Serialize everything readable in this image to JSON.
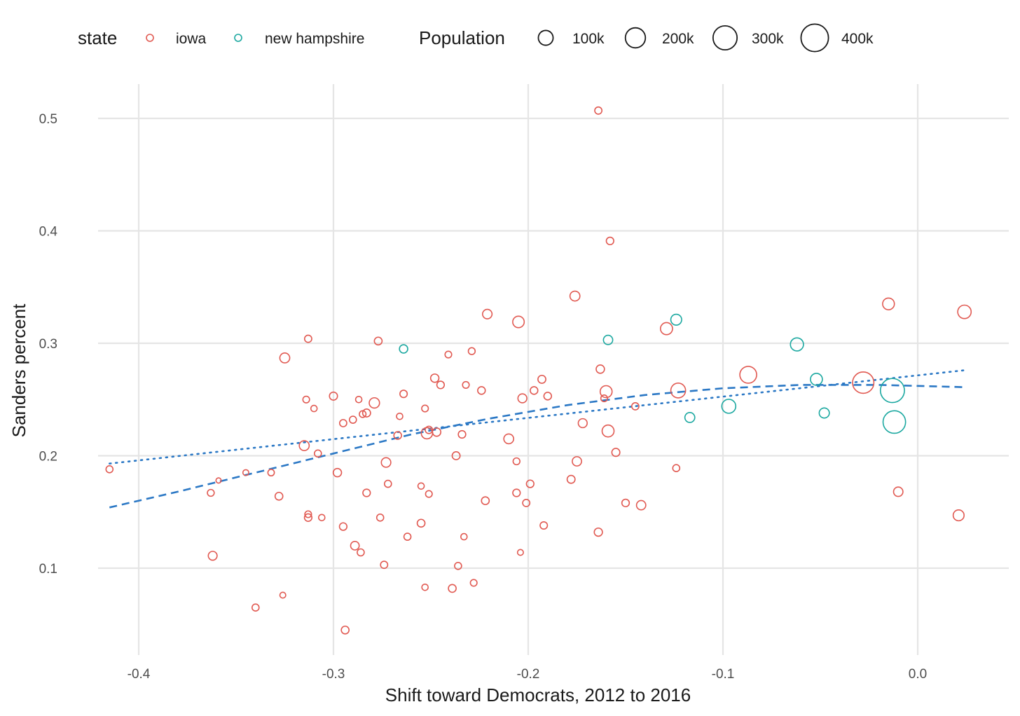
{
  "chart_data": {
    "type": "scatter",
    "title": "",
    "xlabel": "Shift toward Democrats, 2012 to 2016",
    "ylabel": "Sanders percent",
    "xlim": [
      -0.43,
      0.045
    ],
    "ylim": [
      0.03,
      0.53
    ],
    "x_ticks": [
      -0.4,
      -0.3,
      -0.2,
      -0.1,
      0.0
    ],
    "x_tick_labels": [
      "-0.4",
      "-0.3",
      "-0.2",
      "-0.1",
      "0.0"
    ],
    "y_ticks": [
      0.1,
      0.2,
      0.3,
      0.4,
      0.5
    ],
    "y_tick_labels": [
      "0.1",
      "0.2",
      "0.3",
      "0.4",
      "0.5"
    ],
    "grid": true,
    "colors": {
      "iowa": "#e15a52",
      "new hampshire": "#1ba8a0",
      "trend": "#2b78c5",
      "grid": "#e5e5e5"
    },
    "legend": {
      "placement": "top",
      "state_title": "state",
      "state_items": [
        "iowa",
        "new hampshire"
      ],
      "size_title": "Population",
      "size_items": [
        {
          "label": "100k",
          "value": 100000
        },
        {
          "label": "200k",
          "value": 200000
        },
        {
          "label": "300k",
          "value": 300000
        },
        {
          "label": "400k",
          "value": 400000
        }
      ]
    },
    "series": [
      {
        "name": "iowa",
        "points": [
          {
            "x": -0.415,
            "y": 0.188,
            "pop": 15000
          },
          {
            "x": -0.363,
            "y": 0.167,
            "pop": 14000
          },
          {
            "x": -0.362,
            "y": 0.111,
            "pop": 28000
          },
          {
            "x": -0.359,
            "y": 0.178,
            "pop": 6000
          },
          {
            "x": -0.345,
            "y": 0.185,
            "pop": 9000
          },
          {
            "x": -0.34,
            "y": 0.065,
            "pop": 15000
          },
          {
            "x": -0.332,
            "y": 0.185,
            "pop": 12000
          },
          {
            "x": -0.328,
            "y": 0.164,
            "pop": 20000
          },
          {
            "x": -0.326,
            "y": 0.076,
            "pop": 9000
          },
          {
            "x": -0.325,
            "y": 0.287,
            "pop": 38000
          },
          {
            "x": -0.315,
            "y": 0.209,
            "pop": 38000
          },
          {
            "x": -0.314,
            "y": 0.25,
            "pop": 13000
          },
          {
            "x": -0.313,
            "y": 0.304,
            "pop": 16000
          },
          {
            "x": -0.313,
            "y": 0.148,
            "pop": 13000
          },
          {
            "x": -0.313,
            "y": 0.145,
            "pop": 18000
          },
          {
            "x": -0.31,
            "y": 0.242,
            "pop": 11000
          },
          {
            "x": -0.308,
            "y": 0.202,
            "pop": 15000
          },
          {
            "x": -0.306,
            "y": 0.145,
            "pop": 11000
          },
          {
            "x": -0.3,
            "y": 0.253,
            "pop": 22000
          },
          {
            "x": -0.298,
            "y": 0.185,
            "pop": 24000
          },
          {
            "x": -0.295,
            "y": 0.229,
            "pop": 16000
          },
          {
            "x": -0.295,
            "y": 0.137,
            "pop": 18000
          },
          {
            "x": -0.294,
            "y": 0.045,
            "pop": 20000
          },
          {
            "x": -0.29,
            "y": 0.232,
            "pop": 15000
          },
          {
            "x": -0.289,
            "y": 0.12,
            "pop": 26000
          },
          {
            "x": -0.287,
            "y": 0.25,
            "pop": 11000
          },
          {
            "x": -0.286,
            "y": 0.114,
            "pop": 15000
          },
          {
            "x": -0.285,
            "y": 0.237,
            "pop": 13000
          },
          {
            "x": -0.283,
            "y": 0.238,
            "pop": 21000
          },
          {
            "x": -0.283,
            "y": 0.167,
            "pop": 18000
          },
          {
            "x": -0.279,
            "y": 0.247,
            "pop": 42000
          },
          {
            "x": -0.277,
            "y": 0.302,
            "pop": 20000
          },
          {
            "x": -0.276,
            "y": 0.145,
            "pop": 15000
          },
          {
            "x": -0.274,
            "y": 0.103,
            "pop": 16000
          },
          {
            "x": -0.273,
            "y": 0.194,
            "pop": 34000
          },
          {
            "x": -0.272,
            "y": 0.175,
            "pop": 15000
          },
          {
            "x": -0.267,
            "y": 0.218,
            "pop": 19000
          },
          {
            "x": -0.266,
            "y": 0.235,
            "pop": 11000
          },
          {
            "x": -0.264,
            "y": 0.255,
            "pop": 17000
          },
          {
            "x": -0.262,
            "y": 0.128,
            "pop": 15000
          },
          {
            "x": -0.255,
            "y": 0.173,
            "pop": 11000
          },
          {
            "x": -0.255,
            "y": 0.14,
            "pop": 20000
          },
          {
            "x": -0.253,
            "y": 0.242,
            "pop": 13000
          },
          {
            "x": -0.253,
            "y": 0.083,
            "pop": 11000
          },
          {
            "x": -0.252,
            "y": 0.22,
            "pop": 52000
          },
          {
            "x": -0.251,
            "y": 0.223,
            "pop": 17000
          },
          {
            "x": -0.251,
            "y": 0.166,
            "pop": 13000
          },
          {
            "x": -0.248,
            "y": 0.269,
            "pop": 24000
          },
          {
            "x": -0.247,
            "y": 0.221,
            "pop": 24000
          },
          {
            "x": -0.245,
            "y": 0.263,
            "pop": 18000
          },
          {
            "x": -0.241,
            "y": 0.29,
            "pop": 13000
          },
          {
            "x": -0.239,
            "y": 0.082,
            "pop": 20000
          },
          {
            "x": -0.237,
            "y": 0.2,
            "pop": 21000
          },
          {
            "x": -0.236,
            "y": 0.102,
            "pop": 15000
          },
          {
            "x": -0.234,
            "y": 0.219,
            "pop": 18000
          },
          {
            "x": -0.233,
            "y": 0.128,
            "pop": 11000
          },
          {
            "x": -0.232,
            "y": 0.263,
            "pop": 13000
          },
          {
            "x": -0.229,
            "y": 0.293,
            "pop": 14000
          },
          {
            "x": -0.228,
            "y": 0.087,
            "pop": 13000
          },
          {
            "x": -0.224,
            "y": 0.258,
            "pop": 19000
          },
          {
            "x": -0.222,
            "y": 0.16,
            "pop": 20000
          },
          {
            "x": -0.221,
            "y": 0.326,
            "pop": 34000
          },
          {
            "x": -0.21,
            "y": 0.215,
            "pop": 37000
          },
          {
            "x": -0.206,
            "y": 0.195,
            "pop": 14000
          },
          {
            "x": -0.206,
            "y": 0.167,
            "pop": 18000
          },
          {
            "x": -0.205,
            "y": 0.319,
            "pop": 55000
          },
          {
            "x": -0.204,
            "y": 0.114,
            "pop": 9000
          },
          {
            "x": -0.203,
            "y": 0.251,
            "pop": 29000
          },
          {
            "x": -0.201,
            "y": 0.158,
            "pop": 16000
          },
          {
            "x": -0.199,
            "y": 0.175,
            "pop": 18000
          },
          {
            "x": -0.197,
            "y": 0.258,
            "pop": 19000
          },
          {
            "x": -0.193,
            "y": 0.268,
            "pop": 21000
          },
          {
            "x": -0.192,
            "y": 0.138,
            "pop": 17000
          },
          {
            "x": -0.19,
            "y": 0.253,
            "pop": 19000
          },
          {
            "x": -0.178,
            "y": 0.179,
            "pop": 21000
          },
          {
            "x": -0.176,
            "y": 0.342,
            "pop": 38000
          },
          {
            "x": -0.175,
            "y": 0.195,
            "pop": 32000
          },
          {
            "x": -0.172,
            "y": 0.229,
            "pop": 29000
          },
          {
            "x": -0.164,
            "y": 0.507,
            "pop": 16000
          },
          {
            "x": -0.164,
            "y": 0.132,
            "pop": 23000
          },
          {
            "x": -0.163,
            "y": 0.277,
            "pop": 24000
          },
          {
            "x": -0.161,
            "y": 0.251,
            "pop": 13000
          },
          {
            "x": -0.16,
            "y": 0.257,
            "pop": 60000
          },
          {
            "x": -0.159,
            "y": 0.222,
            "pop": 60000
          },
          {
            "x": -0.158,
            "y": 0.391,
            "pop": 18000
          },
          {
            "x": -0.155,
            "y": 0.203,
            "pop": 22000
          },
          {
            "x": -0.15,
            "y": 0.158,
            "pop": 18000
          },
          {
            "x": -0.145,
            "y": 0.244,
            "pop": 16000
          },
          {
            "x": -0.142,
            "y": 0.156,
            "pop": 32000
          },
          {
            "x": -0.129,
            "y": 0.313,
            "pop": 62000
          },
          {
            "x": -0.124,
            "y": 0.189,
            "pop": 15000
          },
          {
            "x": -0.123,
            "y": 0.258,
            "pop": 100000
          },
          {
            "x": -0.087,
            "y": 0.272,
            "pop": 135000
          },
          {
            "x": -0.028,
            "y": 0.265,
            "pop": 230000
          },
          {
            "x": -0.015,
            "y": 0.335,
            "pop": 58000
          },
          {
            "x": -0.01,
            "y": 0.168,
            "pop": 33000
          },
          {
            "x": 0.021,
            "y": 0.147,
            "pop": 48000
          },
          {
            "x": 0.024,
            "y": 0.328,
            "pop": 80000
          }
        ]
      },
      {
        "name": "new hampshire",
        "points": [
          {
            "x": -0.264,
            "y": 0.295,
            "pop": 24000
          },
          {
            "x": -0.159,
            "y": 0.303,
            "pop": 32000
          },
          {
            "x": -0.124,
            "y": 0.321,
            "pop": 48000
          },
          {
            "x": -0.117,
            "y": 0.234,
            "pop": 38000
          },
          {
            "x": -0.097,
            "y": 0.244,
            "pop": 88000
          },
          {
            "x": -0.062,
            "y": 0.299,
            "pop": 75000
          },
          {
            "x": -0.052,
            "y": 0.268,
            "pop": 60000
          },
          {
            "x": -0.048,
            "y": 0.238,
            "pop": 40000
          },
          {
            "x": -0.013,
            "y": 0.258,
            "pop": 300000
          },
          {
            "x": -0.012,
            "y": 0.23,
            "pop": 260000
          }
        ]
      }
    ],
    "trend_lines": [
      {
        "name": "loess",
        "style": "dashed",
        "points": [
          {
            "x": -0.415,
            "y": 0.154
          },
          {
            "x": -0.38,
            "y": 0.168
          },
          {
            "x": -0.34,
            "y": 0.185
          },
          {
            "x": -0.3,
            "y": 0.202
          },
          {
            "x": -0.26,
            "y": 0.219
          },
          {
            "x": -0.22,
            "y": 0.233
          },
          {
            "x": -0.18,
            "y": 0.245
          },
          {
            "x": -0.14,
            "y": 0.254
          },
          {
            "x": -0.1,
            "y": 0.26
          },
          {
            "x": -0.06,
            "y": 0.263
          },
          {
            "x": -0.02,
            "y": 0.263
          },
          {
            "x": 0.024,
            "y": 0.261
          }
        ]
      },
      {
        "name": "linear",
        "style": "dotted",
        "points": [
          {
            "x": -0.415,
            "y": 0.193
          },
          {
            "x": 0.024,
            "y": 0.276
          }
        ]
      }
    ]
  }
}
